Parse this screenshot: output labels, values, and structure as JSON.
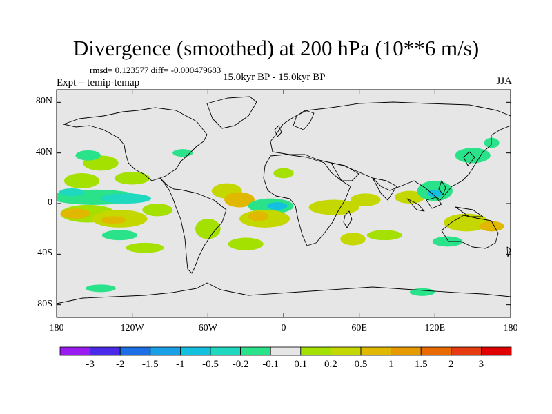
{
  "chart_data": {
    "type": "heatmap",
    "title": "Divergence (smoothed) at 200 hPa (10**6 m/s)",
    "stats_line": "rmsd= 0.123577  diff= -0.000479683",
    "experiment_label": "Expt = temip-temap",
    "period_label": "15.0kyr BP - 15.0kyr BP",
    "season_label": "JJA",
    "x_axis": {
      "range": [
        -180,
        180
      ],
      "ticks": [
        -180,
        -120,
        -60,
        0,
        60,
        120,
        180
      ],
      "tick_labels": [
        "180",
        "120W",
        "60W",
        "0",
        "60E",
        "120E",
        "180"
      ]
    },
    "y_axis": {
      "range": [
        -90,
        90
      ],
      "ticks": [
        80,
        40,
        0,
        -40,
        -80
      ],
      "tick_labels": [
        "80N",
        "40N",
        "0",
        "40S",
        "80S"
      ]
    },
    "colorbar": {
      "labels": [
        "-3",
        "-2",
        "-1.5",
        "-1",
        "-0.5",
        "-0.2",
        "-0.1",
        "0.1",
        "0.2",
        "0.5",
        "1",
        "1.5",
        "2",
        "3"
      ],
      "colors": [
        "#9a1cf0",
        "#4a2ae8",
        "#1e6ee6",
        "#1aa0e6",
        "#14c0e0",
        "#1ed8c0",
        "#2ae28a",
        "#e6e6e6",
        "#a4e000",
        "#c4d800",
        "#e0b800",
        "#e69a00",
        "#e86a00",
        "#e63a10",
        "#e00000"
      ]
    },
    "background_color": "#e6e6e6",
    "blobs": [
      {
        "lon": -150,
        "lat": 5,
        "rlon": 35,
        "rlat": 6,
        "value": -0.15
      },
      {
        "lon": -125,
        "lat": 4,
        "rlon": 20,
        "rlat": 4,
        "value": -0.5
      },
      {
        "lon": -168,
        "lat": 9,
        "rlon": 10,
        "rlat": 3,
        "value": -0.25
      },
      {
        "lon": -160,
        "lat": 18,
        "rlon": 14,
        "rlat": 6,
        "value": 0.15
      },
      {
        "lon": -120,
        "lat": 20,
        "rlon": 14,
        "rlat": 5,
        "value": 0.15
      },
      {
        "lon": -155,
        "lat": -8,
        "rlon": 22,
        "rlat": 7,
        "value": 0.18
      },
      {
        "lon": -165,
        "lat": -8,
        "rlon": 12,
        "rlat": 4,
        "value": 0.6
      },
      {
        "lon": -130,
        "lat": -12,
        "rlon": 22,
        "rlat": 7,
        "value": 0.2
      },
      {
        "lon": -135,
        "lat": -13,
        "rlon": 10,
        "rlat": 3,
        "value": 0.6
      },
      {
        "lon": -100,
        "lat": -5,
        "rlon": 12,
        "rlat": 5,
        "value": 0.18
      },
      {
        "lon": -145,
        "lat": 32,
        "rlon": 14,
        "rlat": 6,
        "value": 0.15
      },
      {
        "lon": -155,
        "lat": 38,
        "rlon": 10,
        "rlat": 4,
        "value": -0.15
      },
      {
        "lon": -130,
        "lat": -25,
        "rlon": 14,
        "rlat": 4,
        "value": -0.15
      },
      {
        "lon": -45,
        "lat": 10,
        "rlon": 12,
        "rlat": 6,
        "value": 0.2
      },
      {
        "lon": -35,
        "lat": 3,
        "rlon": 12,
        "rlat": 6,
        "value": 0.6
      },
      {
        "lon": -60,
        "lat": -20,
        "rlon": 10,
        "rlat": 8,
        "value": 0.18
      },
      {
        "lon": -10,
        "lat": -2,
        "rlon": 18,
        "rlat": 6,
        "value": -0.2
      },
      {
        "lon": -5,
        "lat": -2,
        "rlon": 8,
        "rlat": 3,
        "value": -0.6
      },
      {
        "lon": -15,
        "lat": -12,
        "rlon": 20,
        "rlat": 7,
        "value": 0.25
      },
      {
        "lon": -20,
        "lat": -10,
        "rlon": 8,
        "rlat": 4,
        "value": 0.6
      },
      {
        "lon": 40,
        "lat": -3,
        "rlon": 20,
        "rlat": 6,
        "value": 0.3
      },
      {
        "lon": 65,
        "lat": 3,
        "rlon": 12,
        "rlat": 5,
        "value": 0.2
      },
      {
        "lon": 100,
        "lat": 5,
        "rlon": 12,
        "rlat": 5,
        "value": 0.2
      },
      {
        "lon": 120,
        "lat": 10,
        "rlon": 14,
        "rlat": 8,
        "value": -0.15
      },
      {
        "lon": 120,
        "lat": 8,
        "rlon": 6,
        "rlat": 3,
        "value": -0.6
      },
      {
        "lon": 145,
        "lat": -15,
        "rlon": 18,
        "rlat": 7,
        "value": 0.25
      },
      {
        "lon": 165,
        "lat": -18,
        "rlon": 10,
        "rlat": 4,
        "value": 0.6
      },
      {
        "lon": 150,
        "lat": 38,
        "rlon": 14,
        "rlat": 6,
        "value": -0.15
      },
      {
        "lon": 165,
        "lat": 48,
        "rlon": 6,
        "rlat": 4,
        "value": -0.15
      },
      {
        "lon": 55,
        "lat": -28,
        "rlon": 10,
        "rlat": 5,
        "value": 0.25
      },
      {
        "lon": 80,
        "lat": -25,
        "rlon": 14,
        "rlat": 4,
        "value": 0.18
      },
      {
        "lon": 130,
        "lat": -30,
        "rlon": 12,
        "rlat": 4,
        "value": -0.15
      },
      {
        "lon": -110,
        "lat": -35,
        "rlon": 15,
        "rlat": 4,
        "value": 0.15
      },
      {
        "lon": -30,
        "lat": -32,
        "rlon": 14,
        "rlat": 5,
        "value": 0.15
      },
      {
        "lon": 0,
        "lat": 24,
        "rlon": 8,
        "rlat": 4,
        "value": 0.15
      },
      {
        "lon": -80,
        "lat": 40,
        "rlon": 8,
        "rlat": 3,
        "value": -0.15
      },
      {
        "lon": -145,
        "lat": -67,
        "rlon": 12,
        "rlat": 3,
        "value": -0.15
      },
      {
        "lon": 110,
        "lat": -70,
        "rlon": 10,
        "rlat": 3,
        "value": -0.15
      }
    ]
  }
}
